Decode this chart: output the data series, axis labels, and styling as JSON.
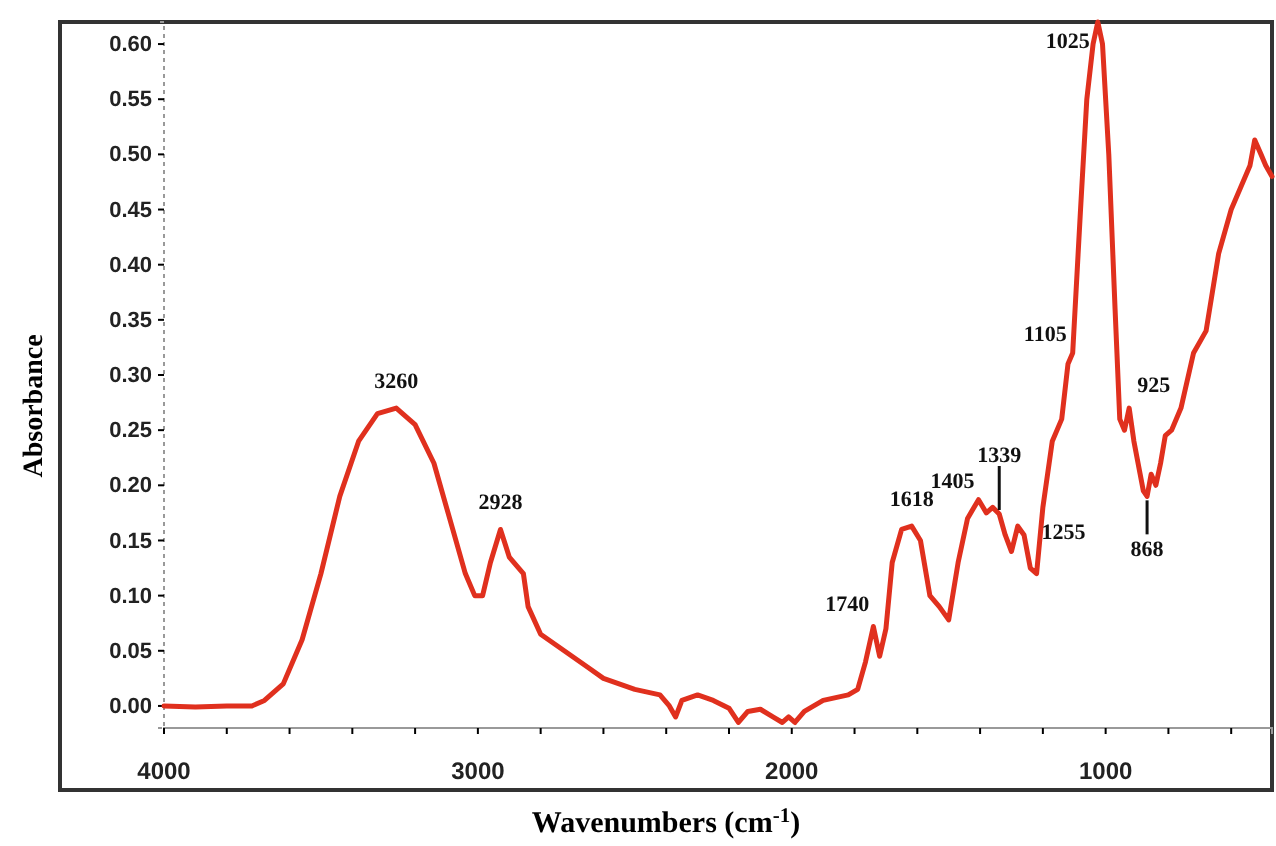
{
  "chart_data": {
    "type": "line",
    "xlabel": "Wavenumbers (cm$^{-1}$)",
    "ylabel": "Absorbance",
    "xlim": [
      4000,
      470
    ],
    "ylim": [
      -0.02,
      0.62
    ],
    "xticks": [
      4000,
      {
        "value": 3800,
        "label": null
      },
      {
        "value": 3600,
        "label": null
      },
      {
        "value": 3400,
        "label": null
      },
      {
        "value": 3200,
        "label": null
      },
      3000,
      {
        "value": 2800,
        "label": null
      },
      {
        "value": 2600,
        "label": null
      },
      {
        "value": 2400,
        "label": null
      },
      {
        "value": 2200,
        "label": null
      },
      2000,
      {
        "value": 1800,
        "label": null
      },
      {
        "value": 1600,
        "label": null
      },
      {
        "value": 1400,
        "label": null
      },
      {
        "value": 1200,
        "label": null
      },
      1000,
      {
        "value": 800,
        "label": null
      },
      {
        "value": 600,
        "label": null
      }
    ],
    "yticks": [
      {
        "value": 0,
        "label": "0.00"
      },
      {
        "value": 0.05,
        "label": "0.05"
      },
      {
        "value": 0.1,
        "label": "0.10"
      },
      {
        "value": 0.15,
        "label": "0.15"
      },
      {
        "value": 0.2,
        "label": "0.20"
      },
      {
        "value": 0.25,
        "label": "0.25"
      },
      {
        "value": 0.3,
        "label": "0.30"
      },
      {
        "value": 0.35,
        "label": "0.35"
      },
      {
        "value": 0.4,
        "label": "0.40"
      },
      {
        "value": 0.45,
        "label": "0.45"
      },
      {
        "value": 0.5,
        "label": "0.50"
      },
      {
        "value": 0.55,
        "label": "0.55"
      },
      {
        "value": 0.6,
        "label": "0.60"
      }
    ],
    "grid": false,
    "marker": "none",
    "line_style": "solid",
    "series": [
      {
        "color": "#e0301e",
        "x": [
          4000,
          3900,
          3800,
          3720,
          3680,
          3620,
          3560,
          3500,
          3440,
          3380,
          3320,
          3260,
          3200,
          3140,
          3080,
          3040,
          3010,
          2985,
          2960,
          2928,
          2900,
          2870,
          2855,
          2840,
          2800,
          2750,
          2700,
          2650,
          2600,
          2500,
          2420,
          2390,
          2370,
          2350,
          2300,
          2250,
          2200,
          2170,
          2140,
          2100,
          2060,
          2030,
          2010,
          1990,
          1960,
          1900,
          1820,
          1790,
          1765,
          1740,
          1720,
          1700,
          1680,
          1650,
          1618,
          1590,
          1560,
          1530,
          1500,
          1470,
          1440,
          1405,
          1380,
          1360,
          1339,
          1320,
          1300,
          1280,
          1260,
          1240,
          1220,
          1200,
          1170,
          1140,
          1120,
          1105,
          1080,
          1060,
          1040,
          1025,
          1010,
          990,
          970,
          955,
          940,
          925,
          910,
          890,
          880,
          868,
          855,
          840,
          825,
          810,
          790,
          760,
          720,
          680,
          640,
          600,
          570,
          540,
          525,
          505,
          490,
          470
        ],
        "values": [
          0.0,
          -0.001,
          0.0,
          0.0,
          0.005,
          0.02,
          0.06,
          0.12,
          0.19,
          0.24,
          0.265,
          0.27,
          0.255,
          0.22,
          0.16,
          0.12,
          0.1,
          0.1,
          0.13,
          0.16,
          0.135,
          0.125,
          0.12,
          0.09,
          0.065,
          0.055,
          0.045,
          0.035,
          0.025,
          0.015,
          0.01,
          0.0,
          -0.01,
          0.005,
          0.01,
          0.005,
          -0.002,
          -0.015,
          -0.005,
          -0.003,
          -0.01,
          -0.015,
          -0.01,
          -0.015,
          -0.005,
          0.005,
          0.01,
          0.015,
          0.04,
          0.072,
          0.045,
          0.07,
          0.13,
          0.16,
          0.163,
          0.15,
          0.1,
          0.09,
          0.078,
          0.13,
          0.17,
          0.187,
          0.175,
          0.18,
          0.174,
          0.155,
          0.14,
          0.163,
          0.155,
          0.125,
          0.12,
          0.18,
          0.24,
          0.26,
          0.31,
          0.32,
          0.45,
          0.55,
          0.6,
          0.62,
          0.6,
          0.5,
          0.36,
          0.26,
          0.25,
          0.27,
          0.24,
          0.21,
          0.195,
          0.19,
          0.21,
          0.2,
          0.22,
          0.245,
          0.25,
          0.27,
          0.32,
          0.34,
          0.41,
          0.45,
          0.47,
          0.49,
          0.513,
          0.5,
          0.49,
          0.48
        ]
      }
    ],
    "annotations": [
      {
        "text": "3260",
        "x": 3260,
        "y": 0.27
      },
      {
        "text": "2928",
        "x": 2928,
        "y": 0.16
      },
      {
        "text": "1740",
        "x": 1740,
        "y": 0.072
      },
      {
        "text": "1618",
        "x": 1618,
        "y": 0.163
      },
      {
        "text": "1405",
        "x": 1405,
        "y": 0.187
      },
      {
        "text": "1339",
        "x": 1339,
        "y": 0.174
      },
      {
        "text": "1255",
        "x": 1255,
        "y": 0.155
      },
      {
        "text": "1105",
        "x": 1105,
        "y": 0.32
      },
      {
        "text": "1025",
        "x": 1025,
        "y": 0.62
      },
      {
        "text": "925",
        "x": 925,
        "y": 0.27
      },
      {
        "text": "868",
        "x": 868,
        "y": 0.19
      }
    ]
  }
}
